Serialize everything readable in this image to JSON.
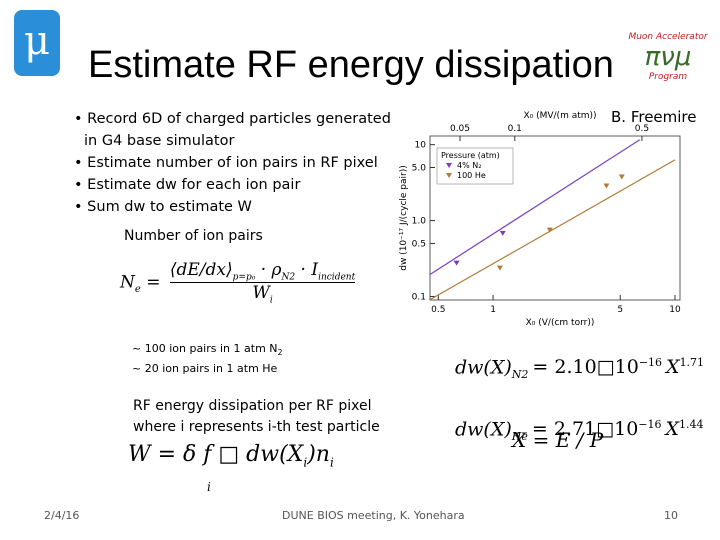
{
  "header": {
    "title": "Estimate RF energy dissipation",
    "logo_left": "μ",
    "logo_right": [
      "Muon Accelerator",
      "Program"
    ]
  },
  "bullets": [
    [
      "Record 6D of charged particles generated",
      "in G4 base simulator"
    ],
    [
      "Estimate number of ion pairs in RF pixel"
    ],
    [
      "Estimate dw for each ion pair"
    ],
    [
      "Sum dw to estimate W"
    ]
  ],
  "credit": "B. Freemire",
  "ion_pairs": {
    "heading": "Number of ion pairs",
    "formula": {
      "lhs": "N",
      "sub_e": "e",
      "num": "dE",
      "den": "dx",
      "cond": "p=p₀",
      "rho": "ρ",
      "rho_sub": "N2",
      "current": "I",
      "current_sub": "incident",
      "w": "W",
      "w_sub": "i"
    },
    "notes": [
      {
        "text": "~ 100 ion pairs in 1 atm N",
        "sub": "2"
      },
      {
        "text": "~ 20 ion pairs in 1 atm He"
      }
    ]
  },
  "fits": [
    {
      "lhs": "dw(X)",
      "sub": "N2",
      "rhs": "= 2.10□10",
      "exp": "−16",
      "var": "X",
      "pow": "1.71"
    },
    {
      "lhs": "dw(X)",
      "sub": "He",
      "rhs": "= 2.71□10",
      "exp": "−16",
      "var": "X",
      "pow": "1.44"
    }
  ],
  "rf": {
    "lines": [
      "RF energy dissipation per RF pixel",
      "where i represents i-th test particle"
    ],
    "formula": {
      "main": "W = δ f □ dw(X",
      "sub1": "i",
      "close": ")n",
      "sub2": "i",
      "under": "i"
    }
  },
  "x_def": "X = E / P",
  "footer": {
    "date": "2/4/16",
    "center": "DUNE BIOS meeting, K. Yonehara",
    "page": "10"
  },
  "figure": {
    "x_title": "X₀ (V/(cm torr))",
    "x2_title": "X₀ (MV/(m atm))",
    "y_title": "dw (10⁻¹⁷ J/(cycle pair))",
    "xlim": [
      0.45,
      10
    ],
    "xticks": [
      0.5,
      1,
      5,
      10
    ],
    "x2lim": [
      0.0342,
      0.76
    ],
    "x2ticks": [
      0.05,
      0.1,
      0.5
    ],
    "ylim": [
      0.09,
      13
    ],
    "yticks": [
      0.1,
      0.5,
      {
        "value": 1,
        "label": "1.0"
      },
      {
        "value": 5,
        "label": "5.0"
      },
      10
    ],
    "legend_title": "Pressure (atm)",
    "series": [
      {
        "name": "4% N₂",
        "color": "#7b3fbf",
        "x": [
          0.63,
          1.13
        ],
        "y": [
          0.28,
          0.69
        ],
        "fit_x": [
          0.45,
          6.4
        ],
        "fit_y": [
          0.195,
          11.6
        ]
      },
      {
        "name": "100 He",
        "color": "#b07a3a",
        "x": [
          1.09,
          2.05,
          4.2,
          5.1
        ],
        "y": [
          0.24,
          0.76,
          2.9,
          3.8
        ],
        "fit_x": [
          0.45,
          10
        ],
        "fit_y": [
          0.091,
          6.3
        ]
      }
    ]
  }
}
